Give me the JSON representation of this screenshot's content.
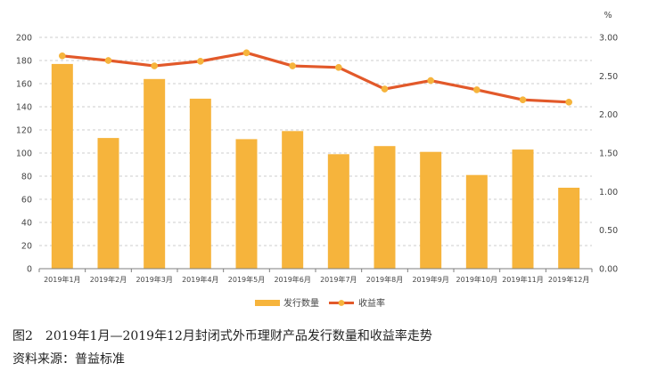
{
  "figure": {
    "label": "图2",
    "title": "2019年1月—2019年12月封闭式外币理财产品发行数量和收益率走势",
    "source": "资料来源：普益标准"
  },
  "colors": {
    "bar": "#F6B43C",
    "line": "#E2592A",
    "marker": "#F6B43C",
    "grid": "#BFBFBF",
    "axis": "#7F7F7F"
  },
  "chart_data": {
    "type": "bar",
    "categories": [
      "2019年1月",
      "2019年2月",
      "2019年3月",
      "2019年4月",
      "2019年5月",
      "2019年6月",
      "2019年7月",
      "2019年8月",
      "2019年9月",
      "2019年10月",
      "2019年11月",
      "2019年12月"
    ],
    "series": [
      {
        "name": "发行数量",
        "type": "bar",
        "axis": "left",
        "values": [
          177,
          113,
          164,
          147,
          112,
          119,
          99,
          106,
          101,
          81,
          103,
          70
        ]
      },
      {
        "name": "收益率",
        "type": "line",
        "axis": "right",
        "values": [
          2.76,
          2.7,
          2.63,
          2.69,
          2.8,
          2.63,
          2.61,
          2.33,
          2.44,
          2.32,
          2.19,
          2.16
        ]
      }
    ],
    "yleft": {
      "lim": [
        0,
        200
      ],
      "ticks": [
        "0",
        "20",
        "40",
        "60",
        "80",
        "100",
        "120",
        "140",
        "160",
        "180",
        "200"
      ]
    },
    "yright": {
      "lim": [
        0,
        3
      ],
      "ticks": [
        "0.00",
        "0.50",
        "1.00",
        "1.50",
        "2.00",
        "2.50",
        "3.00"
      ],
      "unit": "%"
    },
    "grid": true,
    "legend": "bottom-center"
  }
}
